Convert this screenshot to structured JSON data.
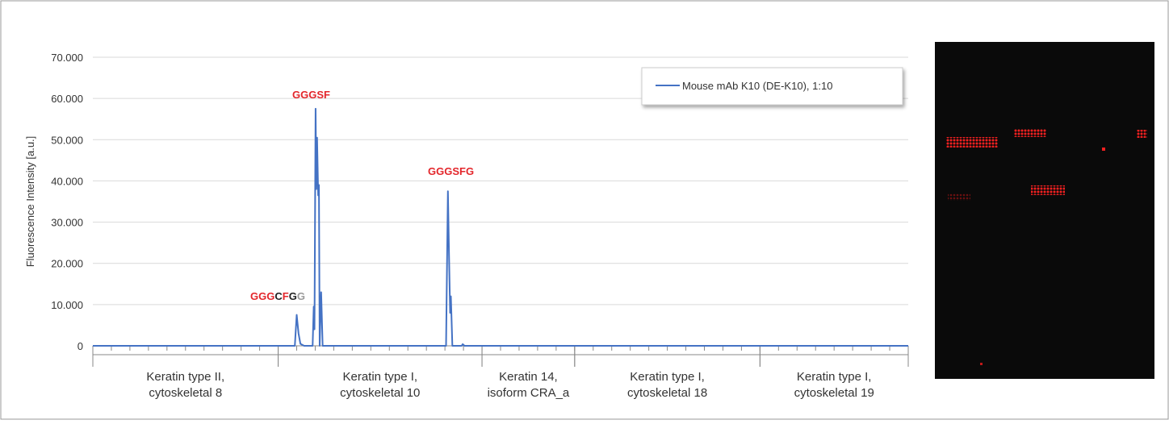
{
  "chart_data": {
    "type": "line",
    "ylabel": "Fluorescence Intensity [a.u.]",
    "ylim": [
      0,
      70000
    ],
    "yticks": [
      0,
      {
        "value": 10000,
        "label": "10.000"
      },
      {
        "value": 20000,
        "label": "20.000"
      },
      {
        "value": 30000,
        "label": "30.000"
      },
      {
        "value": 40000,
        "label": "40.000"
      },
      {
        "value": 50000,
        "label": "50.000"
      },
      {
        "value": 60000,
        "label": "60.000"
      },
      {
        "value": 70000,
        "label": "70.000"
      }
    ],
    "grid": true,
    "xlim": [
      0,
      220
    ],
    "xticks": [
      0,
      5,
      10,
      15,
      20,
      25,
      30,
      35,
      40,
      45,
      50,
      55,
      60,
      65,
      70,
      75,
      80,
      85,
      90,
      95,
      100,
      105,
      110,
      115,
      120,
      125,
      130,
      135,
      140,
      145,
      150,
      155,
      160,
      165,
      170,
      175,
      180,
      185,
      190,
      195,
      200,
      205,
      210,
      215,
      220
    ],
    "groups": [
      {
        "label": [
          "Keratin type II,",
          "cytoskeletal 8"
        ],
        "start": 0,
        "end": 50
      },
      {
        "label": [
          "Keratin type I,",
          "cytoskeletal 10"
        ],
        "start": 50,
        "end": 105
      },
      {
        "label": [
          "Keratin 14,",
          "isoform CRA_a"
        ],
        "start": 105,
        "end": 130
      },
      {
        "label": [
          "Keratin type I,",
          "cytoskeletal 18"
        ],
        "start": 130,
        "end": 180
      },
      {
        "label": [
          "Keratin type I,",
          "cytoskeletal 19"
        ],
        "start": 180,
        "end": 220
      }
    ],
    "legend": "top-right",
    "series": [
      {
        "name": "Mouse mAb K10 (DE-K10), 1:10",
        "color": "#4472c4",
        "x": [
          0,
          54.5,
          55.0,
          55.5,
          56,
          57,
          59.3,
          59.6,
          59.8,
          60.1,
          60.3,
          60.5,
          60.8,
          61.0,
          61.2,
          61.6,
          62,
          95.3,
          95.8,
          96.1,
          96.4,
          96.6,
          97,
          99.5,
          99.8,
          100.3,
          220
        ],
        "values": [
          0,
          0,
          7500,
          3000,
          500,
          0,
          0,
          9500,
          4000,
          57500,
          38000,
          50500,
          36500,
          39000,
          0,
          13000,
          0,
          0,
          37500,
          22000,
          8000,
          12000,
          0,
          0,
          400,
          0,
          0
        ]
      }
    ],
    "annotations": [
      {
        "parts": [
          {
            "text": "GGG",
            "color": "#e3262b"
          },
          {
            "text": "C",
            "color": "#222222"
          },
          {
            "text": "F",
            "color": "#e3262b"
          },
          {
            "text": "G",
            "color": "#222222"
          },
          {
            "text": "G",
            "color": "#999999"
          }
        ]
      },
      {
        "parts": [
          {
            "text": "GGGSF",
            "color": "#e3262b"
          }
        ]
      },
      {
        "parts": [
          {
            "text": "GGGSFG",
            "color": "#e3262b"
          }
        ]
      }
    ]
  }
}
